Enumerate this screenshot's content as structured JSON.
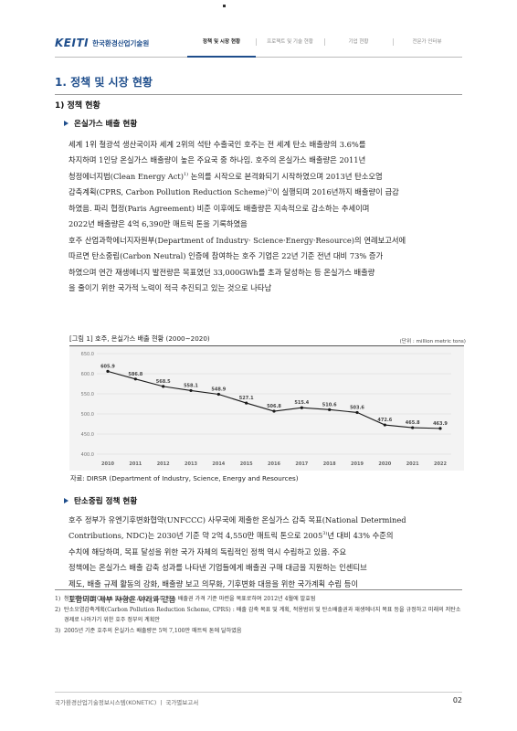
{
  "header": {
    "logo_mark": "KEITI",
    "logo_text": "한국환경산업기술원",
    "nav": [
      {
        "label": "정책 및 시장 현황",
        "active": true
      },
      {
        "label": "프로젝트 및 기술 현황",
        "active": false
      },
      {
        "label": "기업 현황",
        "active": false
      },
      {
        "label": "전문가 인터뷰",
        "active": false
      }
    ]
  },
  "section": {
    "title": "1. 정책 및 시장 현황",
    "subtitle": "1) 정책 현황",
    "sub1": {
      "title": "온실가스 배출 현황",
      "para1": [
        "세계 1위 철광석 생산국이자 세계 2위의 석탄 수출국인 호주는 전 세계 탄소 배출량의 3.6%를",
        "차지하며 1인당 온실가스 배출량이 높은 주요국 중 하나임. 호주의 온실가스 배출량은 2011년",
        "청정에너지법(Clean Energy Act)",
        "1)",
        " 논의를 시작으로 본격화되기 시작하였으며 2013년 탄소오염",
        "감축계획(CPRS, Carbon Pollution Reduction Scheme)",
        "2)",
        "이 실행되며 2016년까지 배출량이 급감",
        "하였음. 파리 협정(Paris Agreement) 비준 이후에도 배출량은 지속적으로 감소하는 추세이며",
        "2022년 배출량은 4억 6,390만 매트릭 톤을 기록하였음"
      ],
      "para2": [
        "호주 산업과학에너지자원부(Department of Industry· Science·Energy·Resource)의 연례보고서에",
        "따르면 탄소중립(Carbon Neutral) 인증에 참여하는 호주 기업은 22년 기준 전년 대비 73% 증가",
        "하였으며 연간 재생에너지 발전량은 목표였던 33,000GWh를 초과 달성하는 등 온실가스 배출량",
        "을 줄이기 위한 국가적 노력이 적극 추진되고 있는 것으로 나타남"
      ]
    },
    "figure": {
      "title": "[그림 1] 호주, 온실가스 배출 현황 (2000~2020)",
      "unit": "(단위 : million metric tons)",
      "source": "자료: DIRSR (Department of Industry, Science, Energy and Resources)"
    },
    "sub2": {
      "title": "탄소중립 정책 현황",
      "para": [
        "호주 정부가 유엔기후변화협약(UNFCCC) 사무국에 제출한 온실가스 감축 목표(National Determined",
        "Contributions, NDC)는 2030년 기준 약 2억 4,550만 매트릭 톤으로 2005",
        "3)",
        "년 대비 43% 수준의",
        "수치에 해당하며, 목표 달성을 위한 국가 자체의 독립적인 정책 역시 수립하고 있음. 주요",
        "정책에는 온실가스 배출 감축 성과를 나타낸 기업들에게 배출권 구매 대금을 지원하는 인센티브",
        "제도, 배출 규제 활동의 강화, 배출량 보고 의무화, 기후변화 대응을 위한 국가계획 수립 등이",
        "포함되며 세부 사항은 아래와 같음"
      ]
    }
  },
  "footnotes": [
    {
      "num": "1)",
      "text": "청정에너지법(Clean Energy Act) : 호주 탄소 배출권 가격 기준 마련을 목표로하며 2012년 4월에 발효됨"
    },
    {
      "num": "2)",
      "text": "탄소오염감축계획(Carbon Pollution Reduction Scheme, CPRS) : 배출 감축 목표 및 계획, 적용범위 및 탄소배출권과 재생에너지 목표 등을 규정하고 미래의 저탄소 경제로 나아가기 위한 호주 정부의 계획안"
    },
    {
      "num": "3)",
      "text": "2005년 기준 호주의 온실가스 배출량은 5억 7,100만 매트릭 톤에 달하였음"
    }
  ],
  "footer": {
    "left": "국가환경산업기술정보시스템(KONETIC)  ㅣ  국가별보고서",
    "page": "02"
  },
  "chart_data": {
    "type": "line",
    "title": "",
    "xlabel": "",
    "ylabel": "",
    "categories": [
      "2010",
      "2011",
      "2012",
      "2013",
      "2014",
      "2015",
      "2016",
      "2017",
      "2018",
      "2019",
      "2020",
      "2021",
      "2022"
    ],
    "values": [
      605.9,
      586.8,
      568.5,
      558.1,
      548.9,
      527.1,
      506.8,
      515.4,
      510.6,
      503.6,
      472.6,
      465.8,
      463.9
    ],
    "value_labels": [
      "605.9",
      "586.8",
      "568.5",
      "558.1",
      "548.9",
      "527.1",
      "506.8",
      "515.4",
      "510.6",
      "503.6",
      "472.6",
      "465.8",
      "463.9"
    ],
    "yticks": [
      "650.0",
      "600.0",
      "550.0",
      "500.0",
      "450.0",
      "400.0"
    ],
    "ylim": [
      400,
      650
    ],
    "grid": true,
    "line_color": "#1a1a1a",
    "marker_color": "#1a1a1a",
    "background": "#f3f3f3"
  }
}
